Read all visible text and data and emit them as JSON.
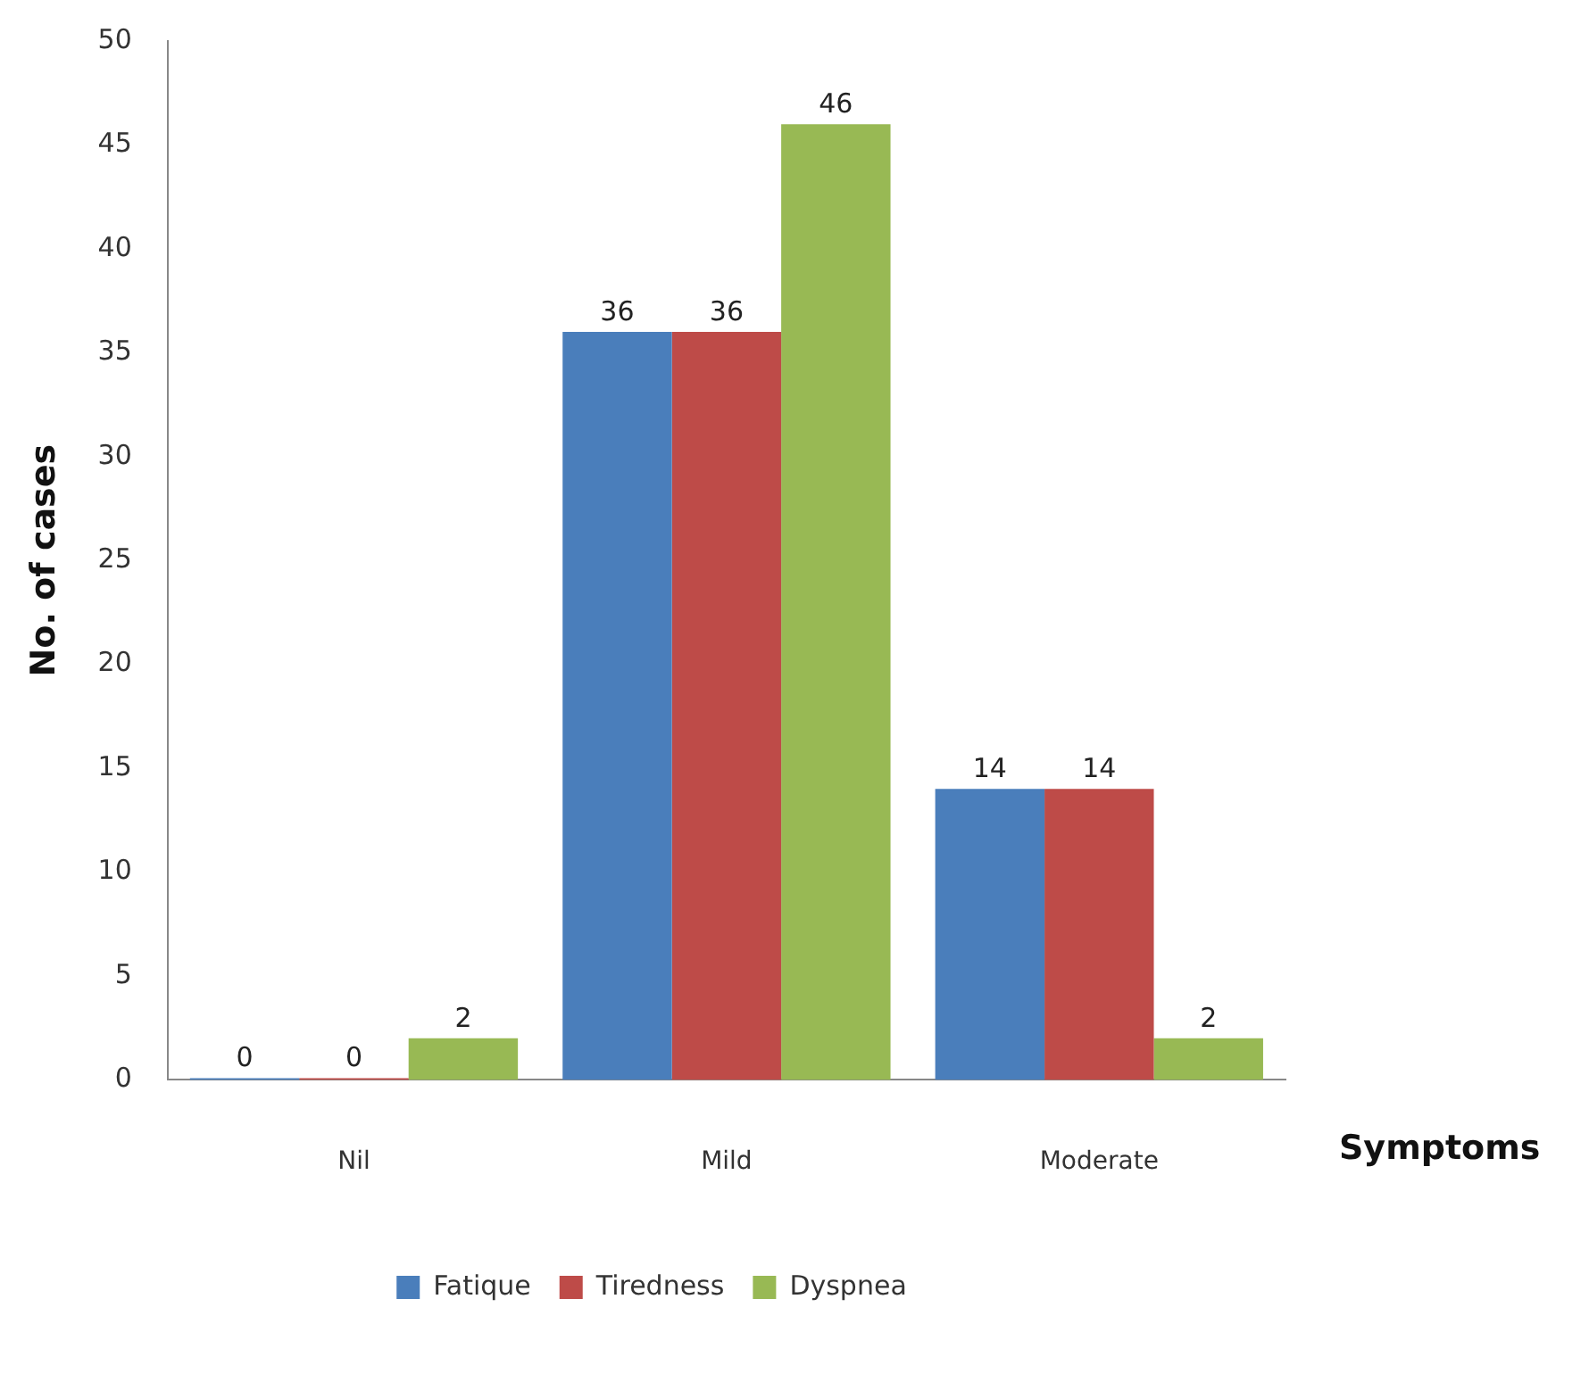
{
  "chart_data": {
    "type": "bar",
    "xlabel": "Symptoms",
    "ylabel": "No. of cases",
    "categories": [
      "Nil",
      "Mild",
      "Moderate"
    ],
    "series": [
      {
        "name": "Fatique",
        "color": "#4a7ebb",
        "values": [
          0,
          36,
          14
        ]
      },
      {
        "name": "Tiredness",
        "color": "#be4b48",
        "values": [
          0,
          36,
          14
        ]
      },
      {
        "name": "Dyspnea",
        "color": "#98b954",
        "values": [
          2,
          46,
          2
        ]
      }
    ],
    "ylim": [
      0,
      50
    ],
    "yticks": [
      0,
      5,
      10,
      15,
      20,
      25,
      30,
      35,
      40,
      45,
      50
    ],
    "grid": false,
    "legend": "bottom",
    "data_labels": true
  }
}
